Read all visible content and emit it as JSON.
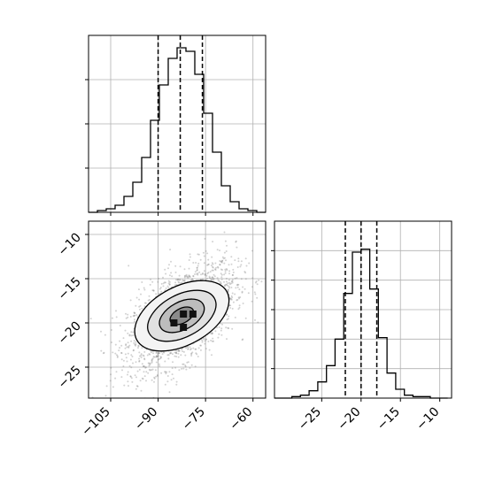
{
  "chart_data": [
    {
      "type": "histogram",
      "panel": "top-left",
      "x_param_range": [
        -112,
        -56
      ],
      "bin_start": -112,
      "bin_width": 2.8,
      "counts": [
        0,
        1,
        2,
        4,
        9,
        17,
        31,
        52,
        72,
        87,
        93,
        91,
        78,
        56,
        34,
        15,
        6,
        2,
        1,
        0
      ],
      "quantile_lines": [
        -90,
        -83,
        -76
      ],
      "y_max": 100,
      "grid": true,
      "show_tick_labels": false
    },
    {
      "type": "scatter",
      "panel": "bottom-left",
      "subtype": "2d-density-contour",
      "xlim": [
        -112,
        -56
      ],
      "ylim": [
        -28.5,
        -8.5
      ],
      "x_ticks": [
        "−105",
        "−90",
        "−75",
        "−60"
      ],
      "x_tick_values": [
        -105,
        -90,
        -75,
        -60
      ],
      "y_ticks": [
        "−10",
        "−15",
        "−20",
        "−25"
      ],
      "y_tick_values": [
        -10,
        -15,
        -20,
        -25
      ],
      "center": [
        -82.5,
        -19.2
      ],
      "std": [
        8.5,
        3.0
      ],
      "correlation": 0.55,
      "grid": true
    },
    {
      "type": "histogram",
      "panel": "bottom-right",
      "x_param_range": [
        -31,
        -8.5
      ],
      "bin_start": -31,
      "bin_width": 1.1,
      "counts": [
        0,
        0,
        1,
        2,
        5,
        11,
        22,
        40,
        71,
        99,
        101,
        74,
        41,
        17,
        6,
        2,
        1,
        1,
        0,
        0
      ],
      "quantile_lines": [
        -22,
        -20,
        -18
      ],
      "y_max": 120,
      "xlim": [
        -31,
        -8.5
      ],
      "x_ticks": [
        "−25",
        "−20",
        "−15",
        "−10"
      ],
      "x_tick_values": [
        -25,
        -20,
        -15,
        -10
      ],
      "grid": true,
      "show_y_tick_labels": false
    }
  ],
  "colors": {
    "grid": "#b0b0b0",
    "axis": "#000000",
    "line": "#000000",
    "point": "#7f7f7f"
  }
}
